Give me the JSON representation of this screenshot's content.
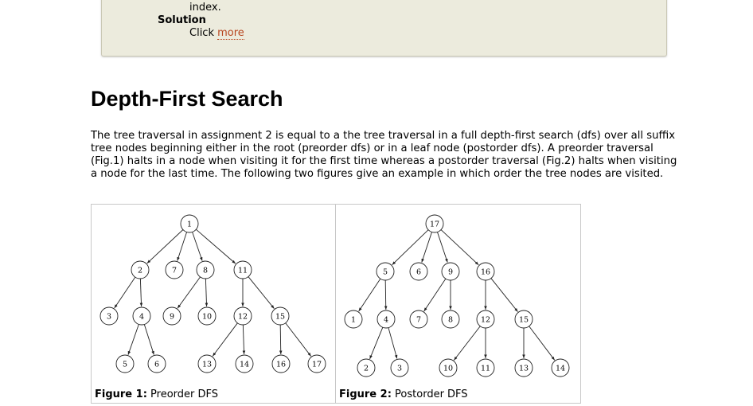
{
  "infobox": {
    "line1": "index.",
    "solution_label": "Solution",
    "click_text": "Click",
    "more_link": "more"
  },
  "section": {
    "title": "Depth-First Search",
    "paragraph": "The tree traversal in assignment 2 is equal to a the tree traversal in a full depth-first search (dfs) over all suffix tree nodes beginning either in the root (preorder dfs) or in a leaf node (postorder dfs). A preorder traversal (Fig.1) halts in a node when visiting it for the first time whereas a postorder traversal (Fig.2) halts when visiting a node for the last time. The following two figures give an example in which order the tree nodes are visited."
  },
  "figures": [
    {
      "caption_label": "Figure 1:",
      "caption_text": "Preorder DFS",
      "labels": [
        "1",
        "2",
        "7",
        "8",
        "11",
        "3",
        "4",
        "9",
        "10",
        "12",
        "15",
        "5",
        "6",
        "13",
        "14",
        "16",
        "17"
      ]
    },
    {
      "caption_label": "Figure 2:",
      "caption_text": "Postorder DFS",
      "labels": [
        "17",
        "5",
        "6",
        "9",
        "16",
        "1",
        "4",
        "7",
        "8",
        "12",
        "15",
        "2",
        "3",
        "10",
        "11",
        "13",
        "14"
      ]
    }
  ],
  "colors": {
    "box_bg": "#ecebdd",
    "link": "#b8461f"
  }
}
